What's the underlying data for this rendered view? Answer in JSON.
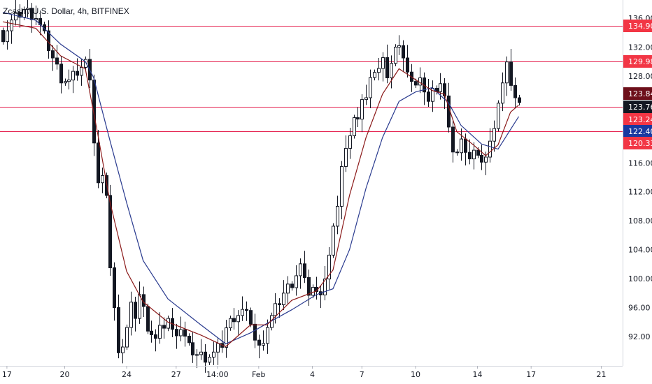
{
  "header": {
    "title": "Zcash / U.S. Dollar, 4h, BITFINEX"
  },
  "colors": {
    "candle": "#131722",
    "ma_fast": "#8b1a1a",
    "ma_slow": "#2a3b8f",
    "level_line": "#e5204e",
    "level_tag": "#f23645",
    "tag_dark": "#6d0f1a",
    "tag_black": "#131722",
    "tag_blue": "#1939a0",
    "axis_text": "#131722"
  },
  "chart_data": {
    "type": "candlestick",
    "title": "Zcash / U.S. Dollar, 4h, BITFINEX",
    "ylim": [
      88.4,
      137.5
    ],
    "y_ticks": [
      "136.00",
      "132.00",
      "128.00",
      "124.00",
      "116.00",
      "112.00",
      "108.00",
      "104.00",
      "100.00",
      "96.00",
      "92.00"
    ],
    "x_ticks": [
      "17",
      "20",
      "24",
      "27",
      "14:00",
      "Feb",
      "4",
      "7",
      "10",
      "14",
      "17",
      "21"
    ],
    "horizontal_levels": [
      134.9,
      129.98,
      123.76,
      120.33
    ],
    "price_tags": [
      {
        "label": "134.90",
        "value": 134.9,
        "color": "level_tag"
      },
      {
        "label": "129.98",
        "value": 129.98,
        "color": "level_tag"
      },
      {
        "label": "123.84",
        "value": 123.84,
        "color": "tag_dark"
      },
      {
        "label": "123.76",
        "value": 123.76,
        "color": "tag_black"
      },
      {
        "label": "123.24",
        "value": 123.24,
        "color": "level_tag"
      },
      {
        "label": "122.40",
        "value": 122.4,
        "color": "tag_blue"
      },
      {
        "label": "120.33",
        "value": 120.33,
        "color": "level_tag"
      }
    ],
    "close_path": [
      [
        0,
        133.5
      ],
      [
        2,
        135.5
      ],
      [
        5,
        137.2
      ],
      [
        8,
        136.2
      ],
      [
        10,
        133.5
      ],
      [
        12,
        130.5
      ],
      [
        14,
        127.8
      ],
      [
        16,
        127.2
      ],
      [
        18,
        128.6
      ],
      [
        20,
        129.8
      ],
      [
        21,
        128.2
      ],
      [
        22,
        119.0
      ],
      [
        23,
        113.0
      ],
      [
        24,
        113.5
      ],
      [
        25,
        112.0
      ],
      [
        26,
        101.5
      ],
      [
        27,
        95.5
      ],
      [
        28,
        90.5
      ],
      [
        29,
        90.8
      ],
      [
        30,
        93.0
      ],
      [
        31,
        96.0
      ],
      [
        32,
        95.0
      ],
      [
        33,
        97.8
      ],
      [
        35,
        93.5
      ],
      [
        37,
        91.5
      ],
      [
        38,
        92.8
      ],
      [
        40,
        94.5
      ],
      [
        41,
        92.5
      ],
      [
        43,
        93.2
      ],
      [
        45,
        90.4
      ],
      [
        47,
        89.5
      ],
      [
        49,
        89.2
      ],
      [
        51,
        89.6
      ],
      [
        53,
        91.0
      ],
      [
        54,
        93.2
      ],
      [
        56,
        94.8
      ],
      [
        58,
        95.5
      ],
      [
        60,
        94.2
      ],
      [
        61,
        91.5
      ],
      [
        62,
        90.3
      ],
      [
        63,
        91.8
      ],
      [
        64,
        93.5
      ],
      [
        66,
        95.8
      ],
      [
        68,
        98.0
      ],
      [
        70,
        99.5
      ],
      [
        72,
        101.8
      ],
      [
        73,
        99.4
      ],
      [
        74,
        98.2
      ],
      [
        75,
        98.8
      ],
      [
        76,
        97.7
      ],
      [
        77,
        98.5
      ],
      [
        78,
        100.2
      ],
      [
        79,
        103.0
      ],
      [
        80,
        106.5
      ],
      [
        81,
        110.5
      ],
      [
        82,
        115.5
      ],
      [
        83,
        117.5
      ],
      [
        84,
        120.5
      ],
      [
        85,
        122.5
      ],
      [
        86,
        121.8
      ],
      [
        87,
        124.0
      ],
      [
        88,
        125.5
      ],
      [
        89,
        127.8
      ],
      [
        90,
        128.0
      ],
      [
        91,
        129.8
      ],
      [
        92,
        130.8
      ],
      [
        93,
        127.5
      ],
      [
        94,
        129.0
      ],
      [
        95,
        132.5
      ],
      [
        96,
        132.2
      ],
      [
        97,
        130.0
      ],
      [
        98,
        129.3
      ],
      [
        99,
        127.5
      ],
      [
        100,
        126.5
      ],
      [
        101,
        127.0
      ],
      [
        102,
        126.3
      ],
      [
        103,
        124.5
      ],
      [
        104,
        125.8
      ],
      [
        105,
        126.6
      ],
      [
        106,
        127.2
      ],
      [
        107,
        125.0
      ],
      [
        108,
        120.2
      ],
      [
        109,
        118.0
      ],
      [
        110,
        117.4
      ],
      [
        111,
        118.8
      ],
      [
        112,
        118.2
      ],
      [
        113,
        116.8
      ],
      [
        114,
        117.5
      ],
      [
        115,
        116.3
      ],
      [
        116,
        116.6
      ],
      [
        117,
        116.8
      ],
      [
        118,
        118.5
      ],
      [
        119,
        121.5
      ],
      [
        120,
        124.5
      ],
      [
        121,
        126.8
      ],
      [
        122,
        129.2
      ],
      [
        123,
        127.2
      ],
      [
        124,
        125.0
      ],
      [
        125,
        123.84
      ]
    ],
    "ma_fast": [
      [
        0,
        135.5
      ],
      [
        8,
        134.6
      ],
      [
        14,
        130.8
      ],
      [
        20,
        129.0
      ],
      [
        23,
        120.0
      ],
      [
        26,
        110.5
      ],
      [
        30,
        101.0
      ],
      [
        34,
        96.8
      ],
      [
        40,
        94.0
      ],
      [
        48,
        92.2
      ],
      [
        54,
        90.6
      ],
      [
        60,
        93.6
      ],
      [
        64,
        93.6
      ],
      [
        70,
        97.0
      ],
      [
        76,
        98.3
      ],
      [
        80,
        101.2
      ],
      [
        84,
        111.5
      ],
      [
        88,
        119.5
      ],
      [
        92,
        125.5
      ],
      [
        96,
        129.0
      ],
      [
        100,
        127.5
      ],
      [
        104,
        126.0
      ],
      [
        107,
        125.5
      ],
      [
        110,
        120.3
      ],
      [
        114,
        118.5
      ],
      [
        117,
        117.0
      ],
      [
        120,
        118.5
      ],
      [
        123,
        123.0
      ],
      [
        125,
        124.0
      ]
    ],
    "ma_slow": [
      [
        0,
        136.8
      ],
      [
        8,
        135.7
      ],
      [
        14,
        132.4
      ],
      [
        20,
        130.0
      ],
      [
        22,
        127.8
      ],
      [
        26,
        119.0
      ],
      [
        30,
        110.5
      ],
      [
        34,
        102.5
      ],
      [
        40,
        97.2
      ],
      [
        48,
        93.6
      ],
      [
        54,
        91.0
      ],
      [
        60,
        92.5
      ],
      [
        64,
        93.8
      ],
      [
        70,
        95.7
      ],
      [
        76,
        97.8
      ],
      [
        80,
        98.6
      ],
      [
        84,
        104.0
      ],
      [
        88,
        112.5
      ],
      [
        92,
        119.5
      ],
      [
        96,
        124.5
      ],
      [
        100,
        125.8
      ],
      [
        104,
        126.4
      ],
      [
        108,
        124.3
      ],
      [
        111,
        121.2
      ],
      [
        116,
        118.6
      ],
      [
        120,
        117.9
      ],
      [
        123,
        120.6
      ],
      [
        125,
        122.4
      ]
    ]
  }
}
